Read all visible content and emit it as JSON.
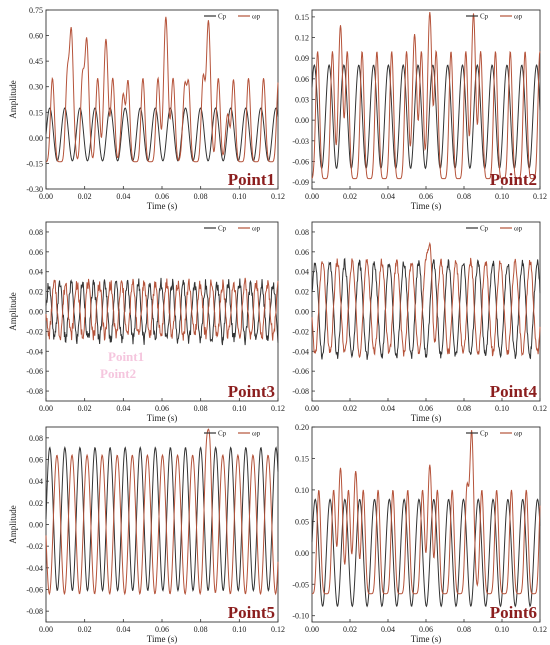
{
  "legend_separator": "—",
  "chart_data": [
    {
      "type": "line",
      "label": "Point1",
      "xlabel": "Time (s)",
      "ylabel": "Amplitude",
      "xlim": [
        0,
        0.12
      ],
      "ylim": [
        -0.3,
        0.75
      ],
      "xticks": [
        "0.00",
        "0.02",
        "0.04",
        "0.06",
        "0.08",
        "0.10",
        "0.12"
      ],
      "yticks": [
        "-0.30",
        "-0.15",
        "0.00",
        "0.15",
        "0.30",
        "0.45",
        "0.60",
        "0.75"
      ],
      "legend": "top-right",
      "series": [
        {
          "name": "Cp",
          "color": "#333333",
          "kind": "sine",
          "period": 0.0078,
          "amp": 0.155,
          "offset": 0.02,
          "phase": 0
        },
        {
          "name": "ωp",
          "color": "#b5533a",
          "kind": "spiky",
          "period": 0.0078,
          "base": -0.14,
          "peak": 0.35,
          "phase": 3.6,
          "peaks": [
            [
              0.013,
              0.65
            ],
            [
              0.021,
              0.59
            ],
            [
              0.031,
              0.58
            ],
            [
              0.04,
              0.26
            ],
            [
              0.062,
              0.71
            ],
            [
              0.072,
              0.33
            ],
            [
              0.084,
              0.69
            ],
            [
              0.094,
              0.14
            ]
          ]
        }
      ]
    },
    {
      "type": "line",
      "label": "Point2",
      "xlabel": "Time (s)",
      "ylabel": "",
      "xlim": [
        0,
        0.12
      ],
      "ylim": [
        -0.1,
        0.16
      ],
      "xticks": [
        "0.00",
        "0.02",
        "0.04",
        "0.06",
        "0.08",
        "0.10",
        "0.12"
      ],
      "yticks": [
        "-0.09",
        "-0.06",
        "-0.03",
        "0.00",
        "0.03",
        "0.06",
        "0.09",
        "0.12",
        "0.15"
      ],
      "legend": "top-right",
      "series": [
        {
          "name": "Cp",
          "color": "#333333",
          "kind": "sine",
          "period": 0.0078,
          "amp": 0.075,
          "offset": 0.005,
          "phase": 0.6
        },
        {
          "name": "ωp",
          "color": "#b5533a",
          "kind": "spiky",
          "period": 0.0078,
          "base": -0.085,
          "peak": 0.1,
          "phase": 3.9,
          "peaks": [
            [
              0.062,
              0.157
            ],
            [
              0.085,
              0.155
            ],
            [
              0.015,
              0.138
            ],
            [
              0.054,
              0.125
            ]
          ]
        }
      ]
    },
    {
      "type": "line",
      "label": "Point3",
      "xlabel": "Time (s)",
      "ylabel": "Amplitude",
      "xlim": [
        0,
        0.12
      ],
      "ylim": [
        -0.09,
        0.09
      ],
      "xticks": [
        "0.00",
        "0.02",
        "0.04",
        "0.06",
        "0.08",
        "0.10",
        "0.12"
      ],
      "yticks": [
        "-0.08",
        "-0.06",
        "-0.04",
        "-0.02",
        "0.00",
        "0.02",
        "0.04",
        "0.06",
        "0.08"
      ],
      "legend": "top-right",
      "series": [
        {
          "name": "Cp",
          "color": "#333333",
          "kind": "sine",
          "period": 0.0058,
          "amp": 0.028,
          "offset": 0.0,
          "phase": 0,
          "noise": 0.006
        },
        {
          "name": "ωp",
          "color": "#b5533a",
          "kind": "sine",
          "period": 0.0058,
          "amp": 0.026,
          "offset": 0.002,
          "phase": 3.14,
          "noise": 0.006
        }
      ]
    },
    {
      "type": "line",
      "label": "Point4",
      "xlabel": "Time (s)",
      "ylabel": "",
      "xlim": [
        0,
        0.12
      ],
      "ylim": [
        -0.09,
        0.09
      ],
      "xticks": [
        "0.00",
        "0.02",
        "0.04",
        "0.06",
        "0.08",
        "0.10",
        "0.12"
      ],
      "yticks": [
        "-0.08",
        "-0.06",
        "-0.04",
        "-0.02",
        "0.00",
        "0.02",
        "0.04",
        "0.06",
        "0.08"
      ],
      "legend": "top-right",
      "series": [
        {
          "name": "Cp",
          "color": "#333333",
          "kind": "sine",
          "period": 0.0078,
          "amp": 0.047,
          "offset": 0.002,
          "phase": 0.3,
          "noise": 0.004
        },
        {
          "name": "ωp",
          "color": "#b5533a",
          "kind": "sine",
          "period": 0.0078,
          "amp": 0.046,
          "offset": 0.004,
          "phase": 3.4,
          "noise": 0.004,
          "peaks": [
            [
              0.062,
              0.068
            ]
          ]
        }
      ]
    },
    {
      "type": "line",
      "label": "Point5",
      "xlabel": "Time (s)",
      "ylabel": "Amplitude",
      "xlim": [
        0,
        0.12
      ],
      "ylim": [
        -0.09,
        0.09
      ],
      "xticks": [
        "0.00",
        "0.02",
        "0.04",
        "0.06",
        "0.08",
        "0.10",
        "0.12"
      ],
      "yticks": [
        "-0.08",
        "-0.06",
        "-0.04",
        "-0.02",
        "0.00",
        "0.02",
        "0.04",
        "0.06",
        "0.08"
      ],
      "legend": "top-right",
      "series": [
        {
          "name": "Cp",
          "color": "#333333",
          "kind": "sine",
          "period": 0.0078,
          "amp": 0.066,
          "offset": 0.005,
          "phase": 0
        },
        {
          "name": "ωp",
          "color": "#b5533a",
          "kind": "sine",
          "period": 0.0078,
          "amp": 0.064,
          "offset": 0.0,
          "phase": 3.3,
          "peaks": [
            [
              0.084,
              0.088
            ]
          ]
        }
      ]
    },
    {
      "type": "line",
      "label": "Point6",
      "xlabel": "Time (s)",
      "ylabel": "",
      "xlim": [
        0,
        0.12
      ],
      "ylim": [
        -0.11,
        0.2
      ],
      "xticks": [
        "0.00",
        "0.02",
        "0.04",
        "0.06",
        "0.08",
        "0.10",
        "0.12"
      ],
      "yticks": [
        "-0.10",
        "-0.05",
        "0.00",
        "0.05",
        "0.10",
        "0.15",
        "0.20"
      ],
      "legend": "top-right",
      "series": [
        {
          "name": "Cp",
          "color": "#333333",
          "kind": "sine",
          "period": 0.0078,
          "amp": 0.085,
          "offset": 0.0,
          "phase": 0.2
        },
        {
          "name": "ωp",
          "color": "#b5533a",
          "kind": "spiky",
          "period": 0.0078,
          "base": -0.065,
          "peak": 0.1,
          "phase": 3.4,
          "peaks": [
            [
              0.084,
              0.195
            ],
            [
              0.062,
              0.14
            ],
            [
              0.015,
              0.135
            ],
            [
              0.023,
              0.13
            ]
          ]
        }
      ]
    }
  ],
  "ghost_labels": [
    "Point1",
    "Point2"
  ]
}
